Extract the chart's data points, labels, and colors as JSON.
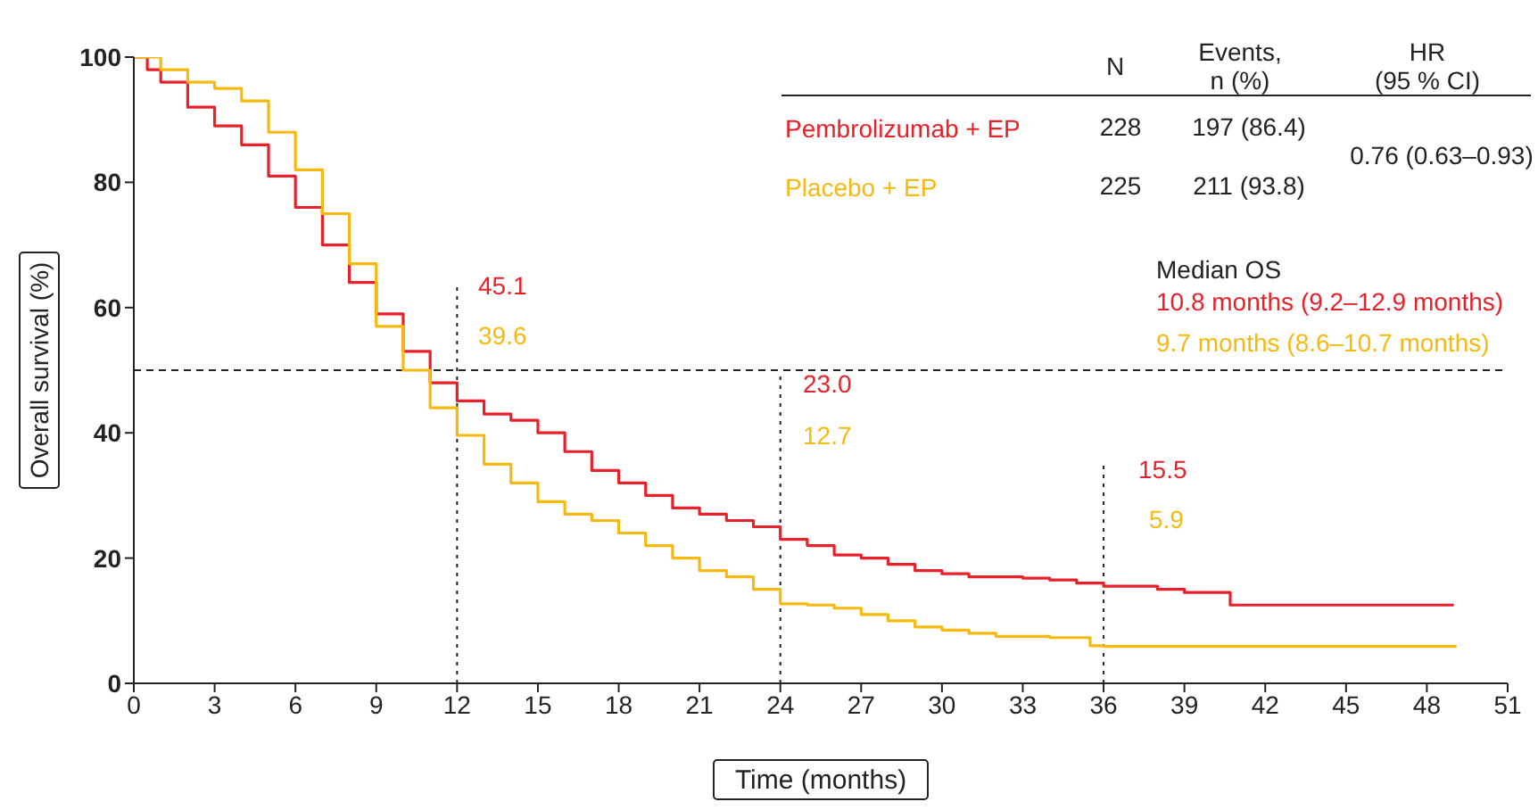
{
  "chart_data": {
    "type": "step",
    "xlabel": "Time (months)",
    "ylabel": "Overall survival (%)",
    "xlim": [
      0,
      51
    ],
    "xticks": [
      0,
      3,
      6,
      9,
      12,
      15,
      18,
      21,
      24,
      27,
      30,
      33,
      36,
      39,
      42,
      45,
      48,
      51
    ],
    "ylim": [
      0,
      100
    ],
    "yticks": [
      0,
      20,
      40,
      60,
      80,
      100
    ],
    "legend": "top right",
    "line_style": "solid",
    "series": [
      {
        "name": "Pembrolizumab + EP",
        "color": "#e8202a",
        "x": [
          0,
          0.5,
          1,
          2,
          3,
          4,
          5,
          6,
          7,
          8,
          9,
          10,
          11,
          12,
          13,
          14,
          15,
          16,
          17,
          18,
          19,
          20,
          21,
          22,
          23,
          24,
          25,
          26,
          27,
          28,
          29,
          30,
          31,
          33,
          34,
          35,
          36,
          37,
          38,
          39,
          40.7,
          49
        ],
        "values": [
          100,
          98,
          96,
          92,
          89,
          86,
          81,
          76,
          70,
          64,
          59,
          53,
          48,
          45.1,
          43,
          42,
          40,
          37,
          34,
          32,
          30,
          28,
          27,
          26,
          25,
          23,
          22,
          20.5,
          20,
          19,
          18,
          17.5,
          17,
          16.8,
          16.5,
          16,
          15.5,
          15.5,
          15,
          14.5,
          12.5,
          12.5
        ]
      },
      {
        "name": "Placebo + EP",
        "color": "#f5b90f",
        "x": [
          0,
          1,
          2,
          3,
          4,
          5,
          6,
          7,
          8,
          9,
          10,
          11,
          12,
          13,
          14,
          15,
          16,
          17,
          18,
          19,
          20,
          21,
          22,
          23,
          24,
          25,
          26,
          27,
          28,
          29,
          30,
          31,
          32,
          34,
          35.5,
          36,
          49.1
        ],
        "values": [
          100,
          98,
          96,
          95,
          93,
          88,
          82,
          75,
          67,
          57,
          50,
          44,
          39.6,
          35,
          32,
          29,
          27,
          26,
          24,
          22,
          20,
          18,
          17,
          15,
          12.7,
          12.5,
          12,
          11,
          10,
          9,
          8.5,
          8,
          7.5,
          7.3,
          6,
          5.9,
          5.9
        ]
      }
    ],
    "ref_lines": [
      {
        "axis": "y",
        "value": 50,
        "line_style": "dashed"
      },
      {
        "axis": "x",
        "value": 12,
        "line_style": "dotted"
      },
      {
        "axis": "x",
        "value": 24,
        "line_style": "dotted"
      },
      {
        "axis": "x",
        "value": 36,
        "line_style": "dotted"
      }
    ],
    "annotations": [
      "N",
      "Events,\nn (%)",
      "HR\n(95 % CI)",
      "228",
      "197 (86.4)",
      "225",
      "211 (93.8)",
      "0.76 (0.63–0.93)",
      "Median OS",
      "10.8 months (9.2–12.9 months)",
      "9.7 months (8.6–10.7 months)",
      "45.1",
      "39.6",
      "23.0",
      "12.7",
      "15.5",
      "5.9"
    ]
  }
}
